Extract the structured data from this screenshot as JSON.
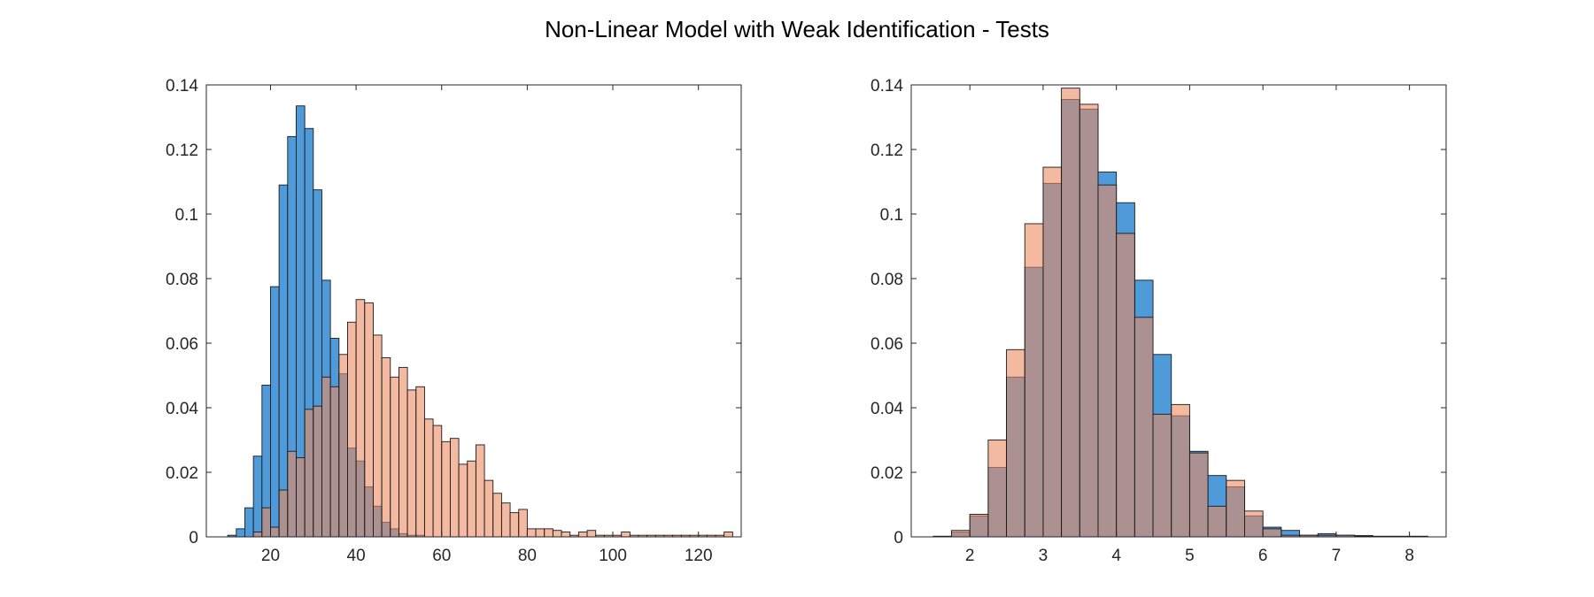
{
  "figure": {
    "title": "Non-Linear Model with Weak Identification - Tests"
  },
  "colors": {
    "series_a": "#4f9bd9",
    "series_b": "#eb8a63",
    "overlap": "#a9705f",
    "edge": "#1a1a1a"
  },
  "chart_data": [
    {
      "type": "bar",
      "subtype": "histogram-overlay",
      "title": "",
      "xlabel": "",
      "ylabel": "",
      "xlim": [
        5,
        130
      ],
      "ylim": [
        0,
        0.14
      ],
      "xticks": [
        20,
        40,
        60,
        80,
        100,
        120
      ],
      "yticks": [
        0,
        0.02,
        0.04,
        0.06,
        0.08,
        0.1,
        0.12,
        0.14
      ],
      "grid": false,
      "legend": "none",
      "series": [
        {
          "bins": [
            [
              10,
              12,
              0.0005
            ],
            [
              12,
              14,
              0.0025
            ],
            [
              14,
              16,
              0.009
            ],
            [
              16,
              18,
              0.025
            ],
            [
              18,
              20,
              0.047
            ],
            [
              20,
              22,
              0.0775
            ],
            [
              22,
              24,
              0.109
            ],
            [
              24,
              26,
              0.124
            ],
            [
              26,
              28,
              0.1335
            ],
            [
              28,
              30,
              0.1265
            ],
            [
              30,
              32,
              0.1075
            ],
            [
              32,
              34,
              0.0795
            ],
            [
              34,
              36,
              0.0615
            ],
            [
              36,
              38,
              0.0505
            ],
            [
              38,
              40,
              0.0275
            ],
            [
              40,
              42,
              0.0235
            ],
            [
              42,
              44,
              0.0155
            ],
            [
              44,
              46,
              0.0095
            ],
            [
              46,
              48,
              0.0045
            ],
            [
              48,
              50,
              0.0025
            ],
            [
              50,
              52,
              0.001
            ],
            [
              52,
              54,
              0.0005
            ],
            [
              54,
              56,
              0.0005
            ]
          ]
        },
        {
          "bins": [
            [
              16,
              18,
              0.0015
            ],
            [
              18,
              20,
              0.009
            ],
            [
              20,
              22,
              0.003
            ],
            [
              22,
              24,
              0.0145
            ],
            [
              24,
              26,
              0.0265
            ],
            [
              26,
              28,
              0.0245
            ],
            [
              28,
              30,
              0.0395
            ],
            [
              30,
              32,
              0.0405
            ],
            [
              32,
              34,
              0.0495
            ],
            [
              34,
              36,
              0.0465
            ],
            [
              36,
              38,
              0.0565
            ],
            [
              38,
              40,
              0.0665
            ],
            [
              40,
              42,
              0.0735
            ],
            [
              42,
              44,
              0.0725
            ],
            [
              44,
              46,
              0.0625
            ],
            [
              46,
              48,
              0.0555
            ],
            [
              48,
              50,
              0.0495
            ],
            [
              50,
              52,
              0.0525
            ],
            [
              52,
              54,
              0.0455
            ],
            [
              54,
              56,
              0.0465
            ],
            [
              56,
              58,
              0.0365
            ],
            [
              58,
              60,
              0.0345
            ],
            [
              60,
              62,
              0.0295
            ],
            [
              62,
              64,
              0.0305
            ],
            [
              64,
              66,
              0.0225
            ],
            [
              66,
              68,
              0.0235
            ],
            [
              68,
              70,
              0.0285
            ],
            [
              70,
              72,
              0.0175
            ],
            [
              72,
              74,
              0.0135
            ],
            [
              74,
              76,
              0.0105
            ],
            [
              76,
              78,
              0.0075
            ],
            [
              78,
              80,
              0.0085
            ],
            [
              80,
              82,
              0.0025
            ],
            [
              82,
              84,
              0.0025
            ],
            [
              84,
              86,
              0.0025
            ],
            [
              86,
              88,
              0.002
            ],
            [
              88,
              90,
              0.0015
            ],
            [
              90,
              92,
              0.0005
            ],
            [
              92,
              94,
              0.0015
            ],
            [
              94,
              96,
              0.002
            ],
            [
              96,
              98,
              0.0005
            ],
            [
              98,
              100,
              0.0005
            ],
            [
              100,
              102,
              0.0005
            ],
            [
              102,
              104,
              0.0015
            ],
            [
              104,
              106,
              0.0005
            ],
            [
              106,
              108,
              0.0005
            ],
            [
              108,
              110,
              0.0005
            ],
            [
              110,
              112,
              0.0005
            ],
            [
              112,
              114,
              0.0005
            ],
            [
              114,
              116,
              0.0005
            ],
            [
              116,
              118,
              0.0005
            ],
            [
              118,
              120,
              0.0005
            ],
            [
              120,
              122,
              0.0005
            ],
            [
              122,
              124,
              0.0005
            ],
            [
              124,
              126,
              0.0005
            ],
            [
              126,
              128,
              0.0015
            ]
          ]
        }
      ]
    },
    {
      "type": "bar",
      "subtype": "histogram-overlay",
      "title": "",
      "xlabel": "",
      "ylabel": "",
      "xlim": [
        1.2,
        8.5
      ],
      "ylim": [
        0,
        0.14
      ],
      "xticks": [
        2,
        3,
        4,
        5,
        6,
        7,
        8
      ],
      "yticks": [
        0,
        0.02,
        0.04,
        0.06,
        0.08,
        0.1,
        0.12,
        0.14
      ],
      "grid": false,
      "legend": "none",
      "series": [
        {
          "bins": [
            [
              1.5,
              1.75,
              0.0002
            ],
            [
              1.75,
              2.0,
              0.0015
            ],
            [
              2.0,
              2.25,
              0.0065
            ],
            [
              2.25,
              2.5,
              0.0215
            ],
            [
              2.5,
              2.75,
              0.0495
            ],
            [
              2.75,
              3.0,
              0.0835
            ],
            [
              3.0,
              3.25,
              0.1095
            ],
            [
              3.25,
              3.5,
              0.1355
            ],
            [
              3.5,
              3.75,
              0.1325
            ],
            [
              3.75,
              4.0,
              0.113
            ],
            [
              4.0,
              4.25,
              0.1035
            ],
            [
              4.25,
              4.5,
              0.0795
            ],
            [
              4.5,
              4.75,
              0.0565
            ],
            [
              4.75,
              5.0,
              0.0375
            ],
            [
              5.0,
              5.25,
              0.0265
            ],
            [
              5.25,
              5.5,
              0.019
            ],
            [
              5.5,
              5.75,
              0.0155
            ],
            [
              5.75,
              6.0,
              0.0065
            ],
            [
              6.0,
              6.25,
              0.003
            ],
            [
              6.25,
              6.5,
              0.002
            ],
            [
              6.5,
              6.75,
              0.0005
            ],
            [
              6.75,
              7.0,
              0.001
            ],
            [
              7.0,
              7.25,
              0.0005
            ],
            [
              7.25,
              7.5,
              0.0004
            ],
            [
              7.5,
              7.75,
              0.0002
            ],
            [
              7.75,
              8.0,
              0.0002
            ],
            [
              8.0,
              8.25,
              0.0002
            ]
          ]
        },
        {
          "bins": [
            [
              1.75,
              2.0,
              0.002
            ],
            [
              2.0,
              2.25,
              0.007
            ],
            [
              2.25,
              2.5,
              0.03
            ],
            [
              2.5,
              2.75,
              0.058
            ],
            [
              2.75,
              3.0,
              0.097
            ],
            [
              3.0,
              3.25,
              0.1145
            ],
            [
              3.25,
              3.5,
              0.139
            ],
            [
              3.5,
              3.75,
              0.134
            ],
            [
              3.75,
              4.0,
              0.109
            ],
            [
              4.0,
              4.25,
              0.094
            ],
            [
              4.25,
              4.5,
              0.068
            ],
            [
              4.5,
              4.75,
              0.038
            ],
            [
              4.75,
              5.0,
              0.041
            ],
            [
              5.0,
              5.25,
              0.026
            ],
            [
              5.25,
              5.5,
              0.0095
            ],
            [
              5.5,
              5.75,
              0.0175
            ],
            [
              5.75,
              6.0,
              0.008
            ],
            [
              6.0,
              6.25,
              0.0025
            ],
            [
              6.25,
              6.5,
              0.0005
            ],
            [
              6.5,
              6.75,
              0.0005
            ],
            [
              6.75,
              7.0,
              0.0005
            ],
            [
              7.0,
              7.25,
              0.0005
            ],
            [
              7.25,
              7.5,
              0.0002
            ]
          ]
        }
      ]
    }
  ]
}
